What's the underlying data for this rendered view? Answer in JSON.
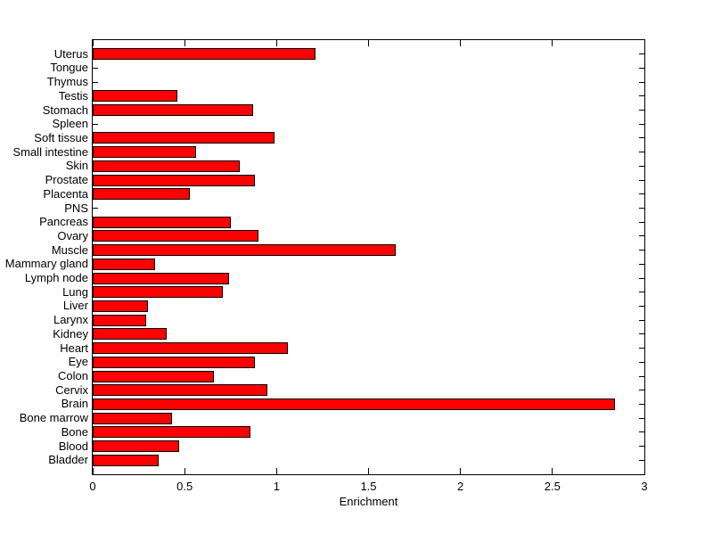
{
  "figure": {
    "background": "#ffffff",
    "bar_fill": "#ff0000",
    "bar_edge": "#000000",
    "axis_color": "#000000"
  },
  "chart_data": {
    "type": "bar",
    "orientation": "horizontal",
    "title": "",
    "xlabel": "Enrichment",
    "ylabel": "",
    "xlim": [
      0,
      3
    ],
    "x_ticks": [
      0,
      0.5,
      1,
      1.5,
      2,
      2.5,
      3
    ],
    "grid": false,
    "legend": null,
    "categories_order": "top-to-bottom",
    "categories": [
      "Uterus",
      "Tongue",
      "Thymus",
      "Testis",
      "Stomach",
      "Spleen",
      "Soft tissue",
      "Small intestine",
      "Skin",
      "Prostate",
      "Placenta",
      "PNS",
      "Pancreas",
      "Ovary",
      "Muscle",
      "Mammary gland",
      "Lymph node",
      "Lung",
      "Liver",
      "Larynx",
      "Kidney",
      "Heart",
      "Eye",
      "Colon",
      "Cervix",
      "Brain",
      "Bone marrow",
      "Bone",
      "Blood",
      "Bladder"
    ],
    "values": [
      1.21,
      0,
      0,
      0.46,
      0.87,
      0,
      0.99,
      0.56,
      0.8,
      0.88,
      0.53,
      0,
      0.75,
      0.9,
      1.65,
      0.34,
      0.74,
      0.71,
      0.3,
      0.29,
      0.4,
      1.06,
      0.88,
      0.66,
      0.95,
      2.84,
      0.43,
      0.86,
      0.47,
      0.36
    ]
  }
}
